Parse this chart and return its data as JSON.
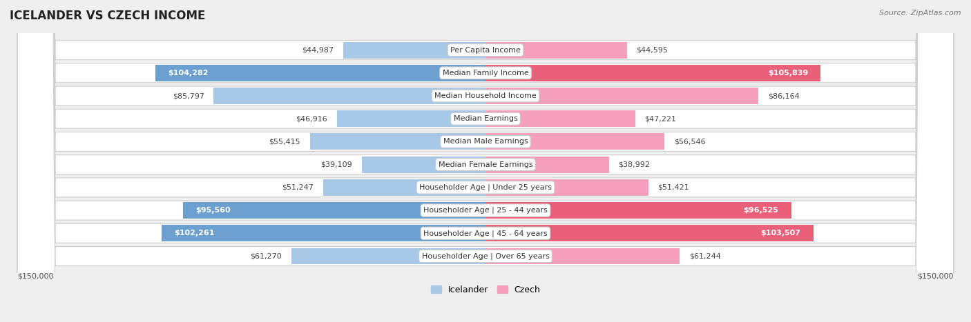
{
  "title": "Icelander vs Czech Income",
  "source": "Source: ZipAtlas.com",
  "categories": [
    "Per Capita Income",
    "Median Family Income",
    "Median Household Income",
    "Median Earnings",
    "Median Male Earnings",
    "Median Female Earnings",
    "Householder Age | Under 25 years",
    "Householder Age | 25 - 44 years",
    "Householder Age | 45 - 64 years",
    "Householder Age | Over 65 years"
  ],
  "icelander_values": [
    44987,
    104282,
    85797,
    46916,
    55415,
    39109,
    51247,
    95560,
    102261,
    61270
  ],
  "czech_values": [
    44595,
    105839,
    86164,
    47221,
    56546,
    38992,
    51421,
    96525,
    103507,
    61244
  ],
  "icelander_labels": [
    "$44,987",
    "$104,282",
    "$85,797",
    "$46,916",
    "$55,415",
    "$39,109",
    "$51,247",
    "$95,560",
    "$102,261",
    "$61,270"
  ],
  "czech_labels": [
    "$44,595",
    "$105,839",
    "$86,164",
    "$47,221",
    "$56,546",
    "$38,992",
    "$51,421",
    "$96,525",
    "$103,507",
    "$61,244"
  ],
  "icelander_color_light": "#a8c8e8",
  "icelander_color_dark": "#6ca0d0",
  "czech_color_light": "#f4a0bc",
  "czech_color_dark": "#e8607a",
  "max_value": 150000,
  "background_color": "#efefef",
  "row_bg_color": "#ffffff",
  "icelander_highlight_rows": [
    1,
    7,
    8
  ],
  "czech_highlight_rows": [
    1,
    7,
    8
  ],
  "legend_icelander": "Icelander",
  "legend_czech": "Czech"
}
